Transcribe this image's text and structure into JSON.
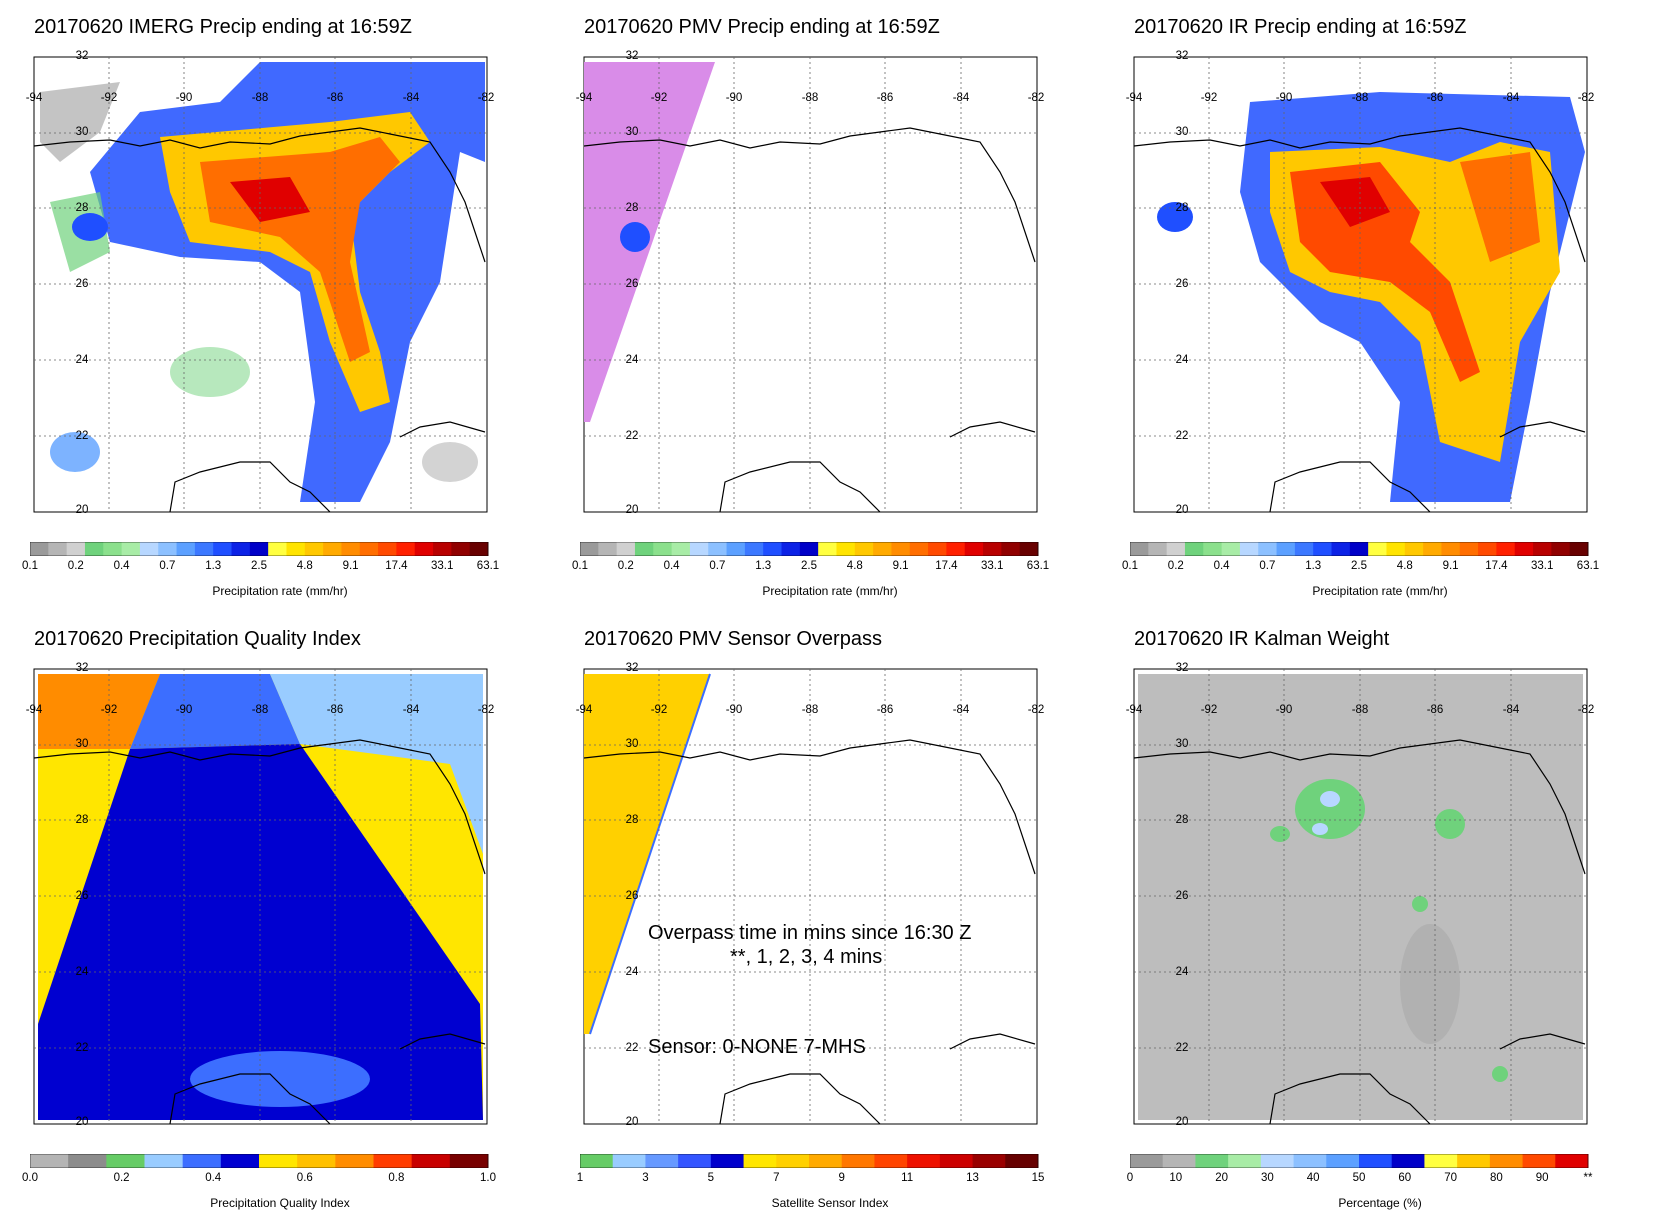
{
  "panels": [
    {
      "id": "imerg",
      "title": "20170620 IMERG Precip ending at 16:59Z",
      "colorbar_ticks": [
        "0.1",
        "0.2",
        "0.4",
        "0.7",
        "1.3",
        "2.5",
        "4.8",
        "9.1",
        "17.4",
        "33.1",
        "63.1"
      ],
      "colorbar_label": "Precipitation rate (mm/hr)",
      "colorbar_colors": [
        "#9a9a9a",
        "#b5b5b5",
        "#d0d0d0",
        "#6fd27c",
        "#8be08c",
        "#a8eca6",
        "#b7d7ff",
        "#8cc0ff",
        "#5ca0ff",
        "#3c78ff",
        "#1f4fff",
        "#0c22e6",
        "#0000c8",
        "#ffff40",
        "#ffe400",
        "#ffc800",
        "#ffaa00",
        "#ff8c00",
        "#ff6e00",
        "#ff4a00",
        "#ff2000",
        "#e00000",
        "#b80000",
        "#900000",
        "#680000"
      ]
    },
    {
      "id": "pmv",
      "title": "20170620 PMV Precip ending at 16:59Z",
      "colorbar_ticks": [
        "0.1",
        "0.2",
        "0.4",
        "0.7",
        "1.3",
        "2.5",
        "4.8",
        "9.1",
        "17.4",
        "33.1",
        "63.1"
      ],
      "colorbar_label": "Precipitation rate (mm/hr)",
      "colorbar_colors": [
        "#9a9a9a",
        "#b5b5b5",
        "#d0d0d0",
        "#6fd27c",
        "#8be08c",
        "#a8eca6",
        "#b7d7ff",
        "#8cc0ff",
        "#5ca0ff",
        "#3c78ff",
        "#1f4fff",
        "#0c22e6",
        "#0000c8",
        "#ffff40",
        "#ffe400",
        "#ffc800",
        "#ffaa00",
        "#ff8c00",
        "#ff6e00",
        "#ff4a00",
        "#ff2000",
        "#e00000",
        "#b80000",
        "#900000",
        "#680000"
      ]
    },
    {
      "id": "ir",
      "title": "20170620 IR Precip ending at 16:59Z",
      "colorbar_ticks": [
        "0.1",
        "0.2",
        "0.4",
        "0.7",
        "1.3",
        "2.5",
        "4.8",
        "9.1",
        "17.4",
        "33.1",
        "63.1"
      ],
      "colorbar_label": "Precipitation rate (mm/hr)",
      "colorbar_colors": [
        "#9a9a9a",
        "#b5b5b5",
        "#d0d0d0",
        "#6fd27c",
        "#8be08c",
        "#a8eca6",
        "#b7d7ff",
        "#8cc0ff",
        "#5ca0ff",
        "#3c78ff",
        "#1f4fff",
        "#0c22e6",
        "#0000c8",
        "#ffff40",
        "#ffe400",
        "#ffc800",
        "#ffaa00",
        "#ff8c00",
        "#ff6e00",
        "#ff4a00",
        "#ff2000",
        "#e00000",
        "#b80000",
        "#900000",
        "#680000"
      ]
    },
    {
      "id": "pqi",
      "title": "20170620 Precipitation Quality Index",
      "colorbar_ticks": [
        "0.0",
        "0.2",
        "0.4",
        "0.6",
        "0.8",
        "1.0"
      ],
      "colorbar_label": "Precipitation Quality Index",
      "colorbar_colors": [
        "#b4b4b4",
        "#8c8c8c",
        "#66cc66",
        "#99ccff",
        "#3c6eff",
        "#0000d0",
        "#ffe600",
        "#ffc000",
        "#ff8c00",
        "#ff3c00",
        "#c80000",
        "#780000"
      ]
    },
    {
      "id": "sensor",
      "title": "20170620 PMV Sensor Overpass",
      "colorbar_ticks": [
        "1",
        "3",
        "5",
        "7",
        "9",
        "11",
        "13",
        "15"
      ],
      "colorbar_label": "Satellite Sensor Index",
      "colorbar_colors": [
        "#66cc66",
        "#99ccff",
        "#6699ff",
        "#3355ff",
        "#0000cc",
        "#ffe600",
        "#ffd000",
        "#ffaa00",
        "#ff7700",
        "#ff4400",
        "#ee1100",
        "#cc0000",
        "#990000",
        "#660000"
      ],
      "overlay_text": {
        "line1": "Overpass time in mins since 16:30 Z",
        "line2": "**, 1, 2, 3, 4 mins",
        "line3": "Sensor:   0-NONE  7-MHS"
      }
    },
    {
      "id": "kalman",
      "title": "20170620 IR Kalman Weight",
      "colorbar_ticks": [
        "0",
        "10",
        "20",
        "30",
        "40",
        "50",
        "60",
        "70",
        "80",
        "90",
        "**"
      ],
      "colorbar_label": "Percentage (%)",
      "colorbar_colors": [
        "#9a9a9a",
        "#b5b5b5",
        "#6fd27c",
        "#a8eca6",
        "#b7d7ff",
        "#8cc0ff",
        "#5ca0ff",
        "#1f4fff",
        "#0000c8",
        "#ffff40",
        "#ffc800",
        "#ff8c00",
        "#ff4a00",
        "#e00000"
      ]
    }
  ],
  "map": {
    "lon_labels": [
      "-94",
      "-92",
      "-90",
      "-88",
      "-86",
      "-84",
      "-82"
    ],
    "lat_labels": [
      "32",
      "30",
      "28",
      "26",
      "24",
      "22",
      "20"
    ]
  }
}
